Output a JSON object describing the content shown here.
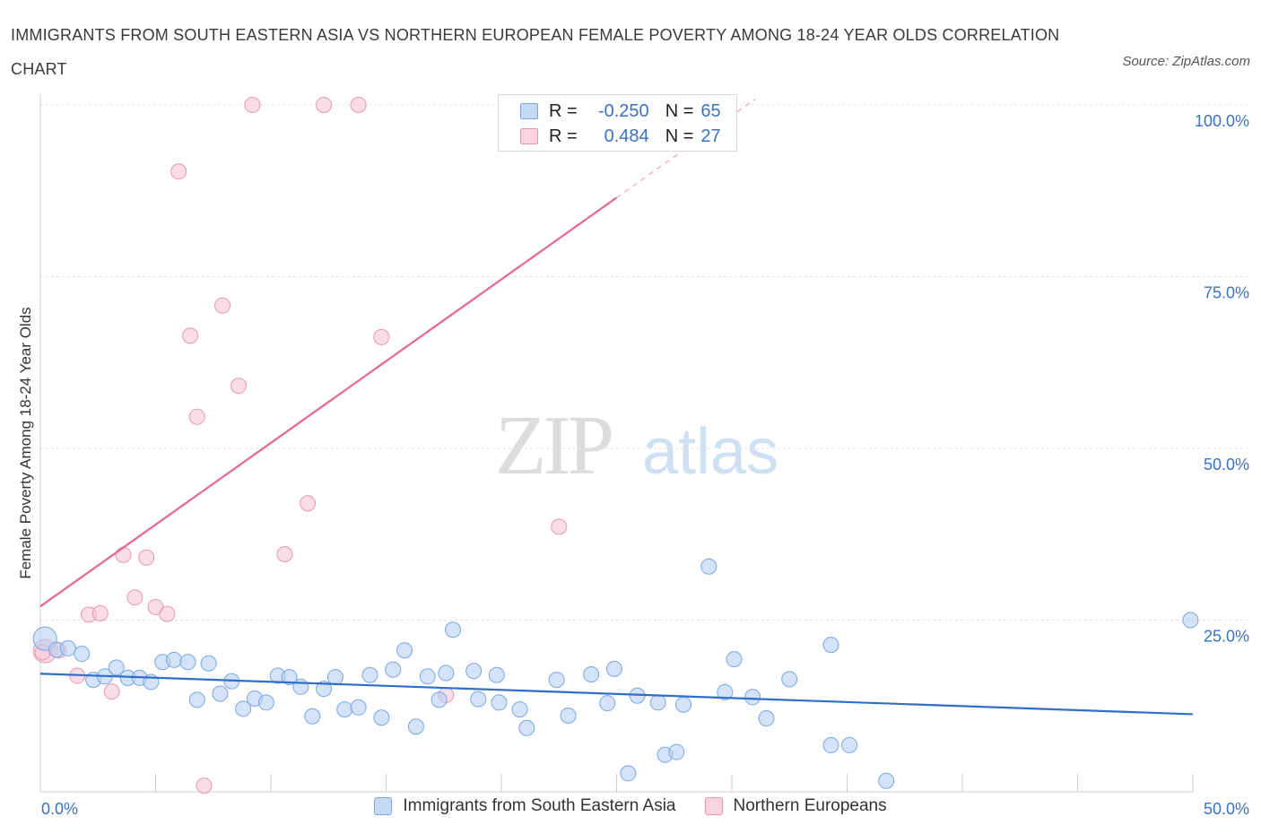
{
  "title": "IMMIGRANTS FROM SOUTH EASTERN ASIA VS NORTHERN EUROPEAN FEMALE POVERTY AMONG 18-24 YEAR OLDS CORRELATION CHART",
  "source": "Source: ZipAtlas.com",
  "watermark": {
    "zip": "ZIP",
    "atlas": "atlas"
  },
  "legend_box": {
    "rows": [
      {
        "r_label": "R =",
        "r_value": "-0.250",
        "n_label": "N =",
        "n_value": "65"
      },
      {
        "r_label": "R =",
        "r_value": "0.484",
        "n_label": "N =",
        "n_value": "27"
      }
    ]
  },
  "colors": {
    "blue_fill": "#b8d0f2",
    "blue_stroke": "#7aa6e0",
    "blue_line": "#2f6fc9",
    "pink_fill": "#f7c6d5",
    "pink_stroke": "#e896b0",
    "pink_line": "#e5668f",
    "axis_text": "#3a72c6",
    "grid": "#e2e2e2"
  },
  "chart_data": {
    "type": "scatter",
    "title": "IMMIGRANTS FROM SOUTH EASTERN ASIA VS NORTHERN EUROPEAN FEMALE POVERTY AMONG 18-24 YEAR OLDS CORRELATION CHART",
    "xlabel": "",
    "ylabel": "Female Poverty Among 18-24 Year Olds",
    "xlim": [
      0,
      50
    ],
    "ylim": [
      0,
      100
    ],
    "x_tick_labels": [
      "0.0%",
      "50.0%"
    ],
    "y_tick_labels": [
      "25.0%",
      "50.0%",
      "75.0%",
      "100.0%"
    ],
    "y_ticks": [
      25,
      50,
      75,
      100
    ],
    "grid": true,
    "legend_position": "bottom",
    "series": [
      {
        "name": "Immigrants from South Eastern Asia",
        "color": "#7aa6e0",
        "r": -0.25,
        "n": 65,
        "trend": {
          "x": [
            0,
            50
          ],
          "y": [
            17.2,
            11.3
          ]
        },
        "points": [
          [
            0.2,
            22.3
          ],
          [
            0.7,
            20.7
          ],
          [
            1.2,
            20.9
          ],
          [
            1.8,
            20.1
          ],
          [
            2.3,
            16.3
          ],
          [
            2.8,
            16.8
          ],
          [
            3.3,
            18.1
          ],
          [
            3.8,
            16.6
          ],
          [
            4.3,
            16.6
          ],
          [
            4.8,
            16.0
          ],
          [
            5.3,
            18.9
          ],
          [
            5.8,
            19.2
          ],
          [
            6.4,
            18.9
          ],
          [
            6.8,
            13.4
          ],
          [
            7.3,
            18.7
          ],
          [
            7.8,
            14.3
          ],
          [
            8.3,
            16.1
          ],
          [
            8.8,
            12.1
          ],
          [
            9.3,
            13.6
          ],
          [
            9.8,
            13.0
          ],
          [
            10.3,
            16.9
          ],
          [
            10.8,
            16.7
          ],
          [
            11.3,
            15.3
          ],
          [
            11.8,
            11.0
          ],
          [
            12.3,
            15.0
          ],
          [
            12.8,
            16.7
          ],
          [
            13.2,
            12.0
          ],
          [
            13.8,
            12.3
          ],
          [
            14.3,
            17.0
          ],
          [
            14.8,
            10.8
          ],
          [
            15.3,
            17.8
          ],
          [
            15.8,
            20.6
          ],
          [
            16.3,
            9.5
          ],
          [
            16.8,
            16.8
          ],
          [
            17.3,
            13.4
          ],
          [
            17.6,
            17.3
          ],
          [
            17.9,
            23.6
          ],
          [
            18.8,
            17.6
          ],
          [
            19.0,
            13.5
          ],
          [
            19.8,
            17.0
          ],
          [
            19.9,
            13.0
          ],
          [
            20.8,
            12.0
          ],
          [
            21.1,
            9.3
          ],
          [
            22.4,
            16.3
          ],
          [
            22.9,
            11.1
          ],
          [
            23.9,
            17.1
          ],
          [
            24.6,
            12.9
          ],
          [
            24.9,
            17.9
          ],
          [
            25.5,
            2.7
          ],
          [
            25.9,
            14.0
          ],
          [
            26.8,
            13.0
          ],
          [
            27.1,
            5.4
          ],
          [
            27.6,
            5.8
          ],
          [
            27.9,
            12.7
          ],
          [
            29.0,
            32.8
          ],
          [
            29.7,
            14.5
          ],
          [
            30.1,
            19.3
          ],
          [
            30.9,
            13.8
          ],
          [
            31.5,
            10.7
          ],
          [
            32.5,
            16.4
          ],
          [
            34.3,
            21.4
          ],
          [
            34.3,
            6.8
          ],
          [
            35.1,
            6.8
          ],
          [
            36.7,
            1.6
          ],
          [
            49.9,
            25.0
          ]
        ]
      },
      {
        "name": "Northern Europeans",
        "color": "#e896b0",
        "r": 0.484,
        "n": 27,
        "trend": {
          "x": [
            0,
            25
          ],
          "y": [
            27.0,
            86.5
          ]
        },
        "trend_dashed": {
          "x": [
            25,
            31
          ],
          "y": [
            86.5,
            100.8
          ]
        },
        "points": [
          [
            0.2,
            20.5
          ],
          [
            0.8,
            20.6
          ],
          [
            1.6,
            16.9
          ],
          [
            2.1,
            25.8
          ],
          [
            2.6,
            26.0
          ],
          [
            3.1,
            14.6
          ],
          [
            3.6,
            34.5
          ],
          [
            4.1,
            28.3
          ],
          [
            4.6,
            34.1
          ],
          [
            5.0,
            26.9
          ],
          [
            5.5,
            25.9
          ],
          [
            6.0,
            90.3
          ],
          [
            6.5,
            66.4
          ],
          [
            6.8,
            54.6
          ],
          [
            7.1,
            0.9
          ],
          [
            7.9,
            70.8
          ],
          [
            8.6,
            59.1
          ],
          [
            9.2,
            100.0
          ],
          [
            10.6,
            34.6
          ],
          [
            11.6,
            42.0
          ],
          [
            12.3,
            100.0
          ],
          [
            13.8,
            100.0
          ],
          [
            14.8,
            66.2
          ],
          [
            17.6,
            14.1
          ],
          [
            22.5,
            38.6
          ],
          [
            23.9,
            100.3
          ],
          [
            0.1,
            20.3
          ]
        ]
      }
    ]
  }
}
